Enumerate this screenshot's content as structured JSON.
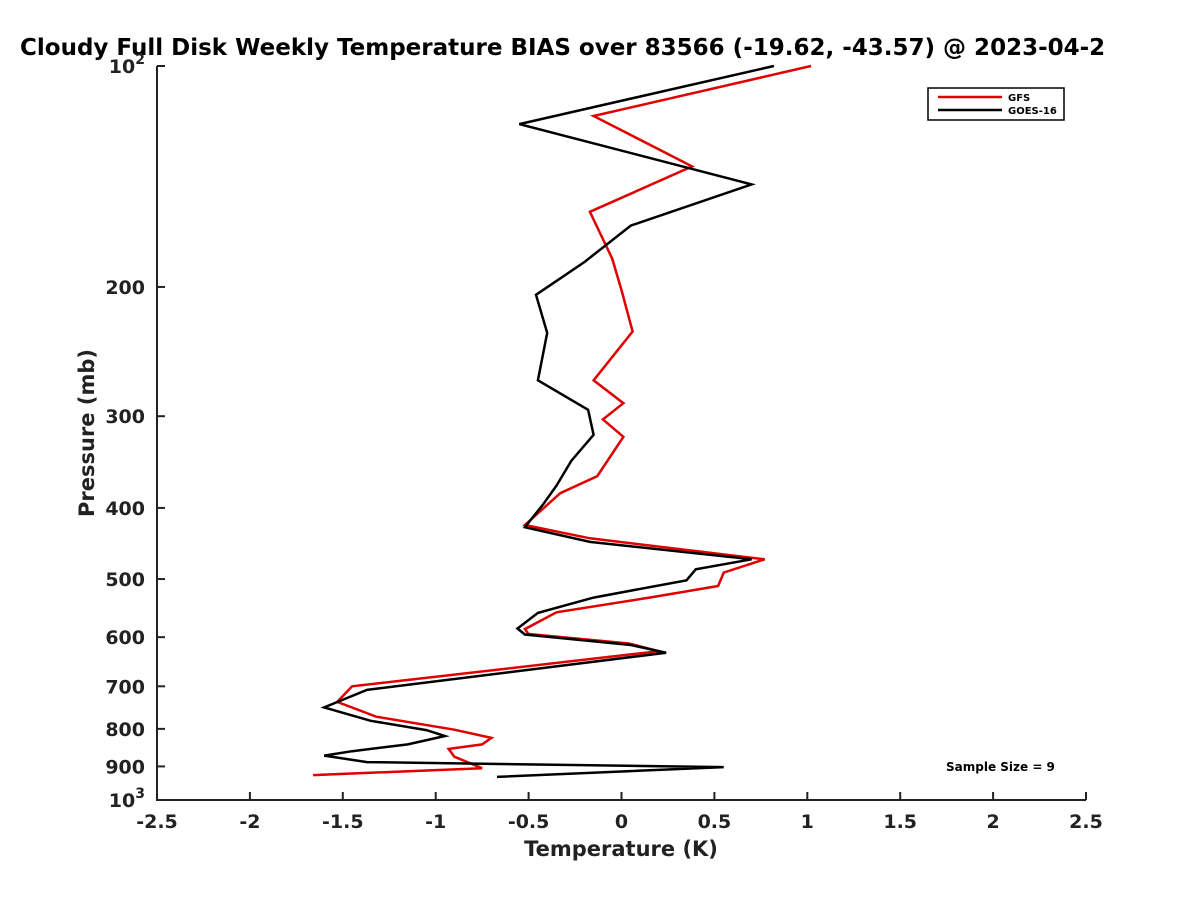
{
  "chart_data": {
    "type": "line",
    "title": "Cloudy Full Disk Weekly Temperature BIAS over 83566 (-19.62, -43.57) @ 2023-04-2",
    "xlabel": "Temperature (K)",
    "ylabel": "Pressure (mb)",
    "xlim": [
      -2.5,
      2.5
    ],
    "ylim": [
      1000,
      100
    ],
    "y_scale": "log",
    "y_reversed": true,
    "grid": false,
    "legend_position": "top-right",
    "x_ticks": [
      "-2.5",
      "-2",
      "-1.5",
      "-1",
      "-0.5",
      "0",
      "0.5",
      "1",
      "1.5",
      "2",
      "2.5"
    ],
    "y_ticks": [
      {
        "value": 100,
        "base": "10",
        "exp": "2"
      },
      {
        "value": 200,
        "label": "200"
      },
      {
        "value": 300,
        "label": "300"
      },
      {
        "value": 400,
        "label": "400"
      },
      {
        "value": 500,
        "label": "500"
      },
      {
        "value": 600,
        "label": "600"
      },
      {
        "value": 700,
        "label": "700"
      },
      {
        "value": 800,
        "label": "800"
      },
      {
        "value": 900,
        "label": "900"
      },
      {
        "value": 1000,
        "base": "10",
        "exp": "3"
      }
    ],
    "annotation": "Sample Size = 9",
    "series": [
      {
        "name": "GFS",
        "color": "#e00000",
        "points": [
          [
            1.02,
            100
          ],
          [
            -0.15,
            117
          ],
          [
            0.38,
            137
          ],
          [
            -0.17,
            158
          ],
          [
            -0.05,
            183
          ],
          [
            0.0,
            202
          ],
          [
            0.06,
            230
          ],
          [
            -0.15,
            268
          ],
          [
            0.01,
            288
          ],
          [
            -0.1,
            303
          ],
          [
            0.01,
            320
          ],
          [
            -0.13,
            362
          ],
          [
            -0.33,
            382
          ],
          [
            -0.52,
            422
          ],
          [
            -0.17,
            440
          ],
          [
            0.77,
            470
          ],
          [
            0.55,
            490
          ],
          [
            0.52,
            511
          ],
          [
            0.15,
            530
          ],
          [
            -0.35,
            555
          ],
          [
            -0.52,
            585
          ],
          [
            -0.5,
            594
          ],
          [
            0.04,
            612
          ],
          [
            0.2,
            627
          ],
          [
            -1.45,
            700
          ],
          [
            -1.53,
            735
          ],
          [
            -1.32,
            770
          ],
          [
            -0.9,
            802
          ],
          [
            -0.7,
            823
          ],
          [
            -0.75,
            840
          ],
          [
            -0.93,
            852
          ],
          [
            -0.9,
            873
          ],
          [
            -0.75,
            905
          ],
          [
            -1.66,
            925
          ]
        ]
      },
      {
        "name": "GOES-16",
        "color": "#000000",
        "points": [
          [
            0.82,
            100
          ],
          [
            -0.55,
            120
          ],
          [
            0.7,
            145
          ],
          [
            0.05,
            165
          ],
          [
            -0.2,
            185
          ],
          [
            -0.46,
            205
          ],
          [
            -0.4,
            231
          ],
          [
            -0.45,
            268
          ],
          [
            -0.18,
            294
          ],
          [
            -0.15,
            318
          ],
          [
            -0.27,
            345
          ],
          [
            -0.35,
            373
          ],
          [
            -0.42,
            395
          ],
          [
            -0.52,
            425
          ],
          [
            -0.17,
            445
          ],
          [
            0.7,
            470
          ],
          [
            0.4,
            485
          ],
          [
            0.35,
            502
          ],
          [
            -0.15,
            530
          ],
          [
            -0.45,
            556
          ],
          [
            -0.56,
            584
          ],
          [
            -0.52,
            595
          ],
          [
            0.05,
            615
          ],
          [
            0.24,
            630
          ],
          [
            -1.37,
            708
          ],
          [
            -1.6,
            748
          ],
          [
            -1.35,
            780
          ],
          [
            -1.05,
            803
          ],
          [
            -0.95,
            818
          ],
          [
            -1.15,
            840
          ],
          [
            -1.45,
            858
          ],
          [
            -1.6,
            870
          ],
          [
            -1.37,
            888
          ],
          [
            0.55,
            902
          ],
          [
            -0.67,
            930
          ]
        ]
      }
    ]
  }
}
